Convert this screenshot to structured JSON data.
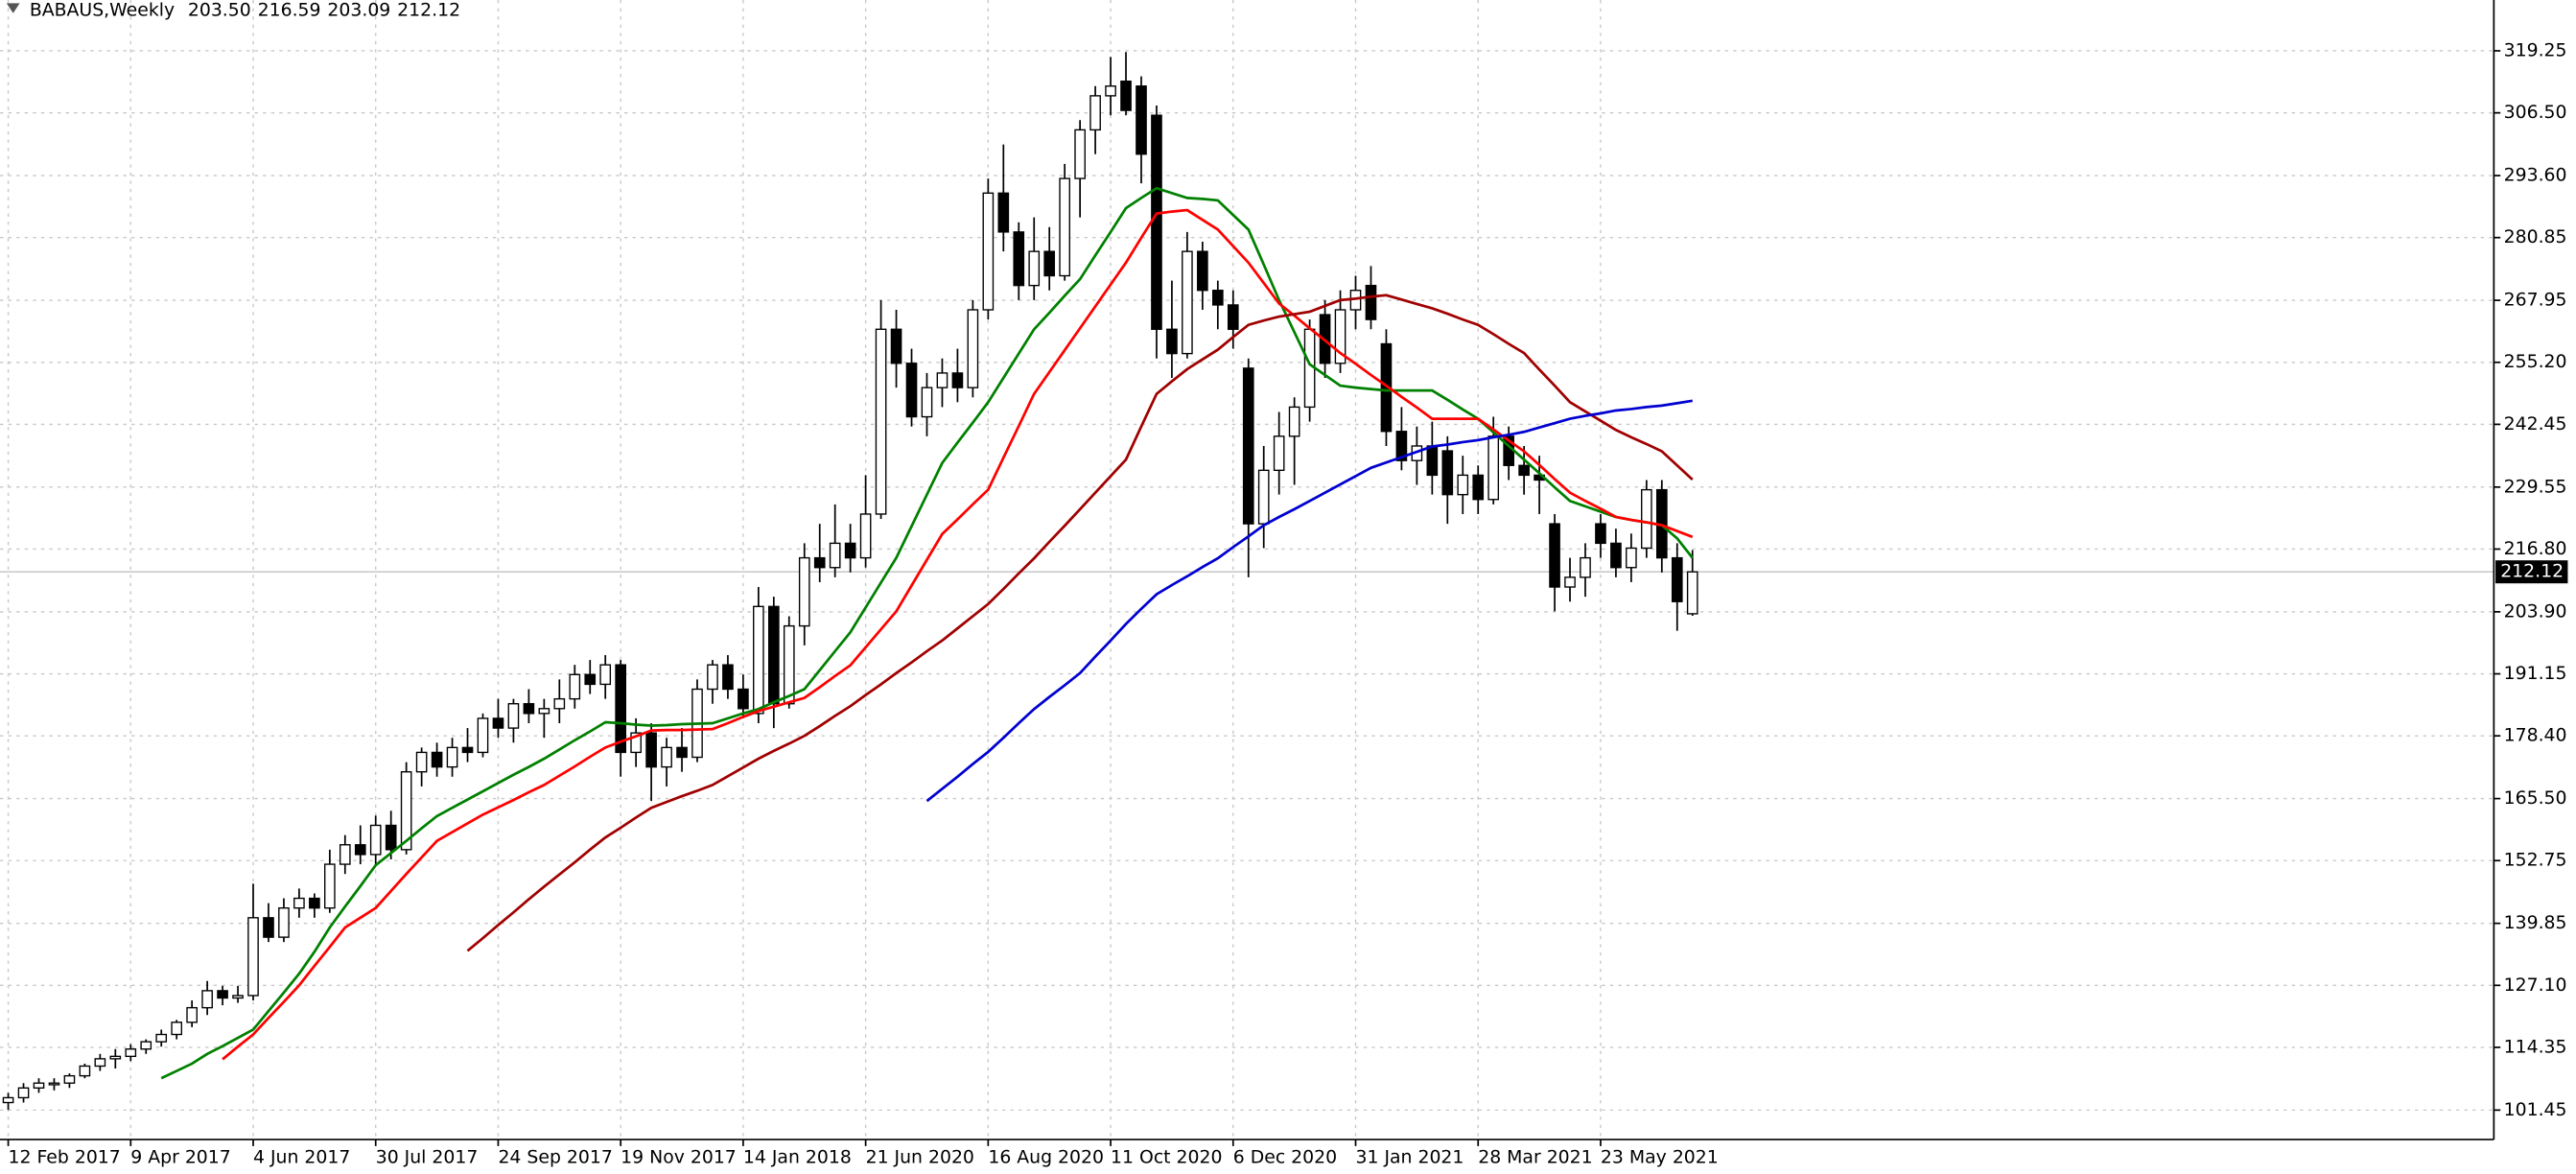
{
  "chart_data": {
    "type": "candlestick",
    "title": "BABAUS,Weekly",
    "ohlc_readout": [
      "203.50",
      "216.59",
      "203.09",
      "212.12"
    ],
    "last_price": 212.12,
    "up_color": "#ffffff",
    "down_color": "#000000",
    "grid": true,
    "categories": [
      "12 Feb 2017",
      null,
      null,
      null,
      null,
      null,
      null,
      null,
      "9 Apr 2017",
      null,
      null,
      null,
      null,
      null,
      null,
      null,
      "4 Jun 2017",
      null,
      null,
      null,
      null,
      null,
      null,
      null,
      "30 Jul 2017",
      null,
      null,
      null,
      null,
      null,
      null,
      null,
      "24 Sep 2017",
      null,
      null,
      null,
      null,
      null,
      null,
      null,
      "19 Nov 2017",
      null,
      null,
      null,
      null,
      null,
      null,
      null,
      "14 Jan 2018",
      null,
      null,
      null,
      null,
      null,
      null,
      null,
      "21 Jun 2020",
      null,
      null,
      null,
      null,
      null,
      null,
      null,
      "16 Aug 2020",
      null,
      null,
      null,
      null,
      null,
      null,
      null,
      "11 Oct 2020",
      null,
      null,
      null,
      null,
      null,
      null,
      null,
      "6 Dec 2020",
      null,
      null,
      null,
      null,
      null,
      null,
      null,
      "31 Jan 2021",
      null,
      null,
      null,
      null,
      null,
      null,
      null,
      "28 Mar 2021",
      null,
      null,
      null,
      null,
      null,
      null,
      null,
      "23 May 2021",
      null,
      null,
      null,
      null,
      null,
      null
    ],
    "open": [
      103,
      104,
      106,
      107,
      107,
      108.5,
      110.5,
      112,
      112.5,
      114,
      115.5,
      117,
      119.5,
      122.5,
      126,
      124.5,
      125,
      141,
      137,
      143,
      145,
      143,
      152,
      156,
      154,
      160,
      155,
      171,
      175,
      172,
      176,
      175,
      182,
      180,
      185,
      183,
      184,
      186,
      191,
      189,
      193,
      175,
      179,
      172,
      176,
      174,
      188,
      193,
      188,
      183,
      205,
      185,
      201,
      215,
      213,
      218,
      215,
      224,
      262,
      255,
      244,
      250,
      253,
      250,
      266,
      290,
      282,
      271,
      278,
      273,
      293,
      303,
      310,
      313,
      312,
      306,
      262,
      257,
      278,
      270,
      267,
      254,
      222,
      233,
      240,
      246,
      265,
      255,
      266,
      271,
      259,
      241,
      235,
      238,
      237,
      228,
      232,
      227,
      240,
      234,
      232,
      222,
      209,
      211,
      222,
      218,
      213,
      217,
      229,
      215,
      203.5
    ],
    "high": [
      105,
      107,
      108,
      108,
      109,
      111,
      113,
      114,
      115,
      116,
      118,
      120,
      124,
      128,
      127,
      127,
      148,
      144,
      145,
      147,
      146,
      155,
      158,
      160,
      162,
      163,
      173,
      176,
      177,
      178,
      180,
      183,
      186,
      186,
      188,
      186,
      190,
      193,
      194,
      195,
      194,
      182,
      181,
      178,
      180,
      190,
      194,
      195,
      191,
      209,
      207,
      203,
      218,
      222,
      226,
      222,
      232,
      268,
      266,
      258,
      253,
      256,
      258,
      268,
      293,
      300,
      284,
      285,
      283,
      296,
      305,
      312,
      318,
      319,
      314,
      308,
      272,
      282,
      280,
      272,
      270,
      256,
      238,
      245,
      248,
      264,
      268,
      270,
      273,
      275,
      262,
      246,
      242,
      243,
      240,
      236,
      234,
      244,
      242,
      238,
      236,
      224,
      215,
      218,
      224,
      221,
      220,
      231,
      231,
      218,
      216.59
    ],
    "low": [
      101.5,
      103,
      105,
      105.5,
      106,
      108,
      109.5,
      110,
      111.5,
      113,
      114.5,
      116,
      118.5,
      121,
      123,
      123.5,
      124,
      136,
      136,
      141,
      141,
      142,
      150,
      152,
      152,
      153,
      154,
      168,
      170,
      170,
      173,
      174,
      178,
      177,
      181,
      178,
      181,
      184,
      187,
      186,
      170,
      172,
      165,
      168,
      171,
      173,
      185,
      186,
      182,
      181,
      180,
      184,
      197,
      210,
      211,
      212,
      213,
      223,
      250,
      242,
      240,
      246,
      247,
      248,
      264,
      278,
      268,
      268,
      270,
      272,
      285,
      298,
      306,
      306,
      292,
      256,
      252,
      256,
      266,
      262,
      258,
      211,
      217,
      228,
      230,
      243,
      252,
      253,
      262,
      262,
      238,
      233,
      230,
      228,
      222,
      224,
      224,
      226,
      231,
      228,
      224,
      204,
      206,
      207,
      215,
      211,
      210,
      215,
      212,
      200,
      203.09
    ],
    "close": [
      104,
      106,
      107,
      107,
      108.5,
      110.5,
      112,
      112.5,
      114,
      115.5,
      117,
      119.5,
      122.5,
      126,
      124.5,
      125,
      141,
      137,
      143,
      145,
      143,
      152,
      156,
      154,
      160,
      155,
      171,
      175,
      172,
      176,
      175,
      182,
      180,
      185,
      183,
      184,
      186,
      191,
      189,
      193,
      175,
      179,
      172,
      176,
      174,
      188,
      193,
      188,
      184,
      205,
      185,
      201,
      215,
      213,
      218,
      215,
      224,
      262,
      255,
      244,
      250,
      253,
      250,
      266,
      290,
      282,
      271,
      278,
      273,
      293,
      303,
      310,
      312,
      307,
      298,
      262,
      257,
      278,
      270,
      267,
      262,
      222,
      233,
      240,
      246,
      262,
      255,
      266,
      270,
      264,
      241,
      235,
      238,
      232,
      228,
      232,
      227,
      240,
      234,
      232,
      231,
      209,
      211,
      215,
      218,
      213,
      217,
      229,
      215,
      206,
      212.12
    ],
    "lines": [
      {
        "color": "#008000",
        "values": [
          null,
          null,
          null,
          null,
          null,
          null,
          null,
          null,
          null,
          null,
          108,
          109.5,
          111,
          113,
          114.6,
          116.3,
          118,
          121.8,
          125.6,
          129.5,
          134,
          139,
          143.3,
          147.5,
          151.8,
          154.3,
          156.8,
          159.4,
          161.9,
          163.6,
          165.3,
          167,
          168.7,
          170.4,
          172,
          173.7,
          175.6,
          177.5,
          179.3,
          181.2,
          181,
          180.7,
          180.5,
          180.6,
          180.8,
          180.9,
          181,
          182,
          183,
          183.9,
          185.3,
          186.6,
          188,
          191.9,
          195.8,
          199.7,
          204.8,
          209.9,
          215,
          221.5,
          228,
          234.5,
          238.7,
          242.8,
          247,
          252,
          257,
          262,
          265.4,
          268.9,
          272.3,
          277.2,
          282,
          286.9,
          289,
          291,
          290,
          289,
          288.8,
          288.5,
          285.5,
          282.5,
          275.3,
          268,
          261.4,
          254.8,
          252.6,
          250.4,
          250,
          249.7,
          249.4,
          249.4,
          249.4,
          249.4,
          247.5,
          245.5,
          243.6,
          240.8,
          238,
          235.2,
          232.4,
          229.5,
          226.7,
          225.6,
          224.5,
          223.4,
          222.8,
          222.3,
          221.7,
          219,
          215
        ]
      },
      {
        "color": "#ff0000",
        "values": [
          null,
          null,
          null,
          null,
          null,
          null,
          null,
          null,
          null,
          null,
          null,
          null,
          null,
          null,
          111.9,
          114.5,
          117,
          120.4,
          123.7,
          127.1,
          131.1,
          135,
          139,
          141,
          143,
          146.5,
          150,
          153.4,
          156.8,
          158.6,
          160.4,
          162.2,
          163.7,
          165.2,
          166.8,
          168.3,
          170.2,
          172.1,
          174.1,
          176,
          177.2,
          178.3,
          179.5,
          179.6,
          179.6,
          179.7,
          179.8,
          181,
          182.3,
          183.5,
          184.4,
          185.3,
          186.2,
          188.4,
          190.7,
          192.9,
          196.6,
          200.3,
          204,
          209.3,
          214.6,
          219.9,
          222.9,
          226,
          229,
          235.6,
          242.1,
          248.7,
          253.2,
          257.7,
          262.2,
          266.7,
          271.2,
          275.7,
          280.8,
          285.8,
          286.2,
          286.5,
          284.5,
          282.5,
          279.1,
          275.7,
          271.5,
          267.3,
          264.8,
          262.2,
          259.7,
          257.1,
          254.9,
          252.6,
          250.4,
          248.1,
          245.9,
          243.6,
          243.6,
          243.6,
          243.6,
          241.4,
          239.1,
          236.9,
          234.1,
          231.2,
          228.4,
          226.7,
          225.1,
          223.4,
          222.8,
          222.3,
          221.7,
          220.5,
          219.3
        ]
      },
      {
        "color": "#a00000",
        "values": [
          null,
          null,
          null,
          null,
          null,
          null,
          null,
          null,
          null,
          null,
          null,
          null,
          null,
          null,
          null,
          null,
          null,
          null,
          null,
          null,
          null,
          null,
          null,
          null,
          null,
          null,
          null,
          null,
          null,
          null,
          134.2,
          136.8,
          139.5,
          142.1,
          144.8,
          147.4,
          149.9,
          152.4,
          155,
          157.5,
          159.5,
          161.6,
          163.6,
          164.8,
          166,
          167.1,
          168.3,
          170.1,
          171.9,
          173.7,
          175.3,
          176.8,
          178.4,
          180.4,
          182.5,
          184.5,
          186.8,
          189,
          191.3,
          193.5,
          195.8,
          198,
          200.5,
          203,
          205.5,
          208.6,
          211.8,
          214.9,
          218.3,
          221.6,
          225,
          228.4,
          231.8,
          235.2,
          242,
          248.7,
          251.3,
          253.8,
          255.8,
          257.8,
          260.4,
          262.9,
          263.8,
          264.6,
          265.1,
          265.6,
          266.8,
          268,
          268.3,
          268.7,
          269,
          268.1,
          267.2,
          266.3,
          265.2,
          264,
          262.9,
          261,
          259,
          257.1,
          253.7,
          250.4,
          247,
          245.1,
          243.2,
          241.3,
          239.8,
          238.4,
          236.9,
          234,
          231.1
        ]
      },
      {
        "color": "#0000d0",
        "values": [
          null,
          null,
          null,
          null,
          null,
          null,
          null,
          null,
          null,
          null,
          null,
          null,
          null,
          null,
          null,
          null,
          null,
          null,
          null,
          null,
          null,
          null,
          null,
          null,
          null,
          null,
          null,
          null,
          null,
          null,
          null,
          null,
          null,
          null,
          null,
          null,
          null,
          null,
          null,
          null,
          null,
          null,
          null,
          null,
          null,
          null,
          null,
          null,
          null,
          null,
          null,
          null,
          null,
          null,
          null,
          null,
          null,
          null,
          null,
          null,
          165,
          167.5,
          170,
          172.6,
          175.1,
          178,
          181,
          183.9,
          186.4,
          188.8,
          191.3,
          194.7,
          198,
          201.4,
          204.5,
          207.5,
          209.4,
          211.2,
          213.1,
          214.9,
          217.2,
          219.4,
          221.7,
          223.4,
          225,
          226.7,
          228.4,
          230.1,
          231.8,
          233.5,
          234.6,
          235.7,
          236.8,
          237.9,
          238.3,
          238.8,
          239.2,
          239.8,
          240.3,
          240.9,
          241.8,
          242.7,
          243.6,
          244.2,
          244.7,
          245.3,
          245.6,
          246,
          246.3,
          246.8,
          247.3
        ]
      }
    ],
    "ylim": [
      95.4,
      329.7
    ],
    "yticks": [
      {
        "value": 101.45,
        "label": "101.45"
      },
      {
        "value": 114.35,
        "label": "114.35"
      },
      {
        "value": 127.1,
        "label": "127.10"
      },
      {
        "value": 139.85,
        "label": "139.85"
      },
      {
        "value": 152.75,
        "label": "152.75"
      },
      {
        "value": 165.5,
        "label": "165.50"
      },
      {
        "value": 178.4,
        "label": "178.40"
      },
      {
        "value": 191.15,
        "label": "191.15"
      },
      {
        "value": 203.9,
        "label": "203.90"
      },
      {
        "value": 216.8,
        "label": "216.80"
      },
      {
        "value": 229.55,
        "label": "229.55"
      },
      {
        "value": 242.45,
        "label": "242.45"
      },
      {
        "value": 255.2,
        "label": "255.20"
      },
      {
        "value": 267.95,
        "label": "267.95"
      },
      {
        "value": 280.85,
        "label": "280.85"
      },
      {
        "value": 293.6,
        "label": "293.60"
      },
      {
        "value": 306.5,
        "label": "306.50"
      },
      319.25
    ]
  }
}
